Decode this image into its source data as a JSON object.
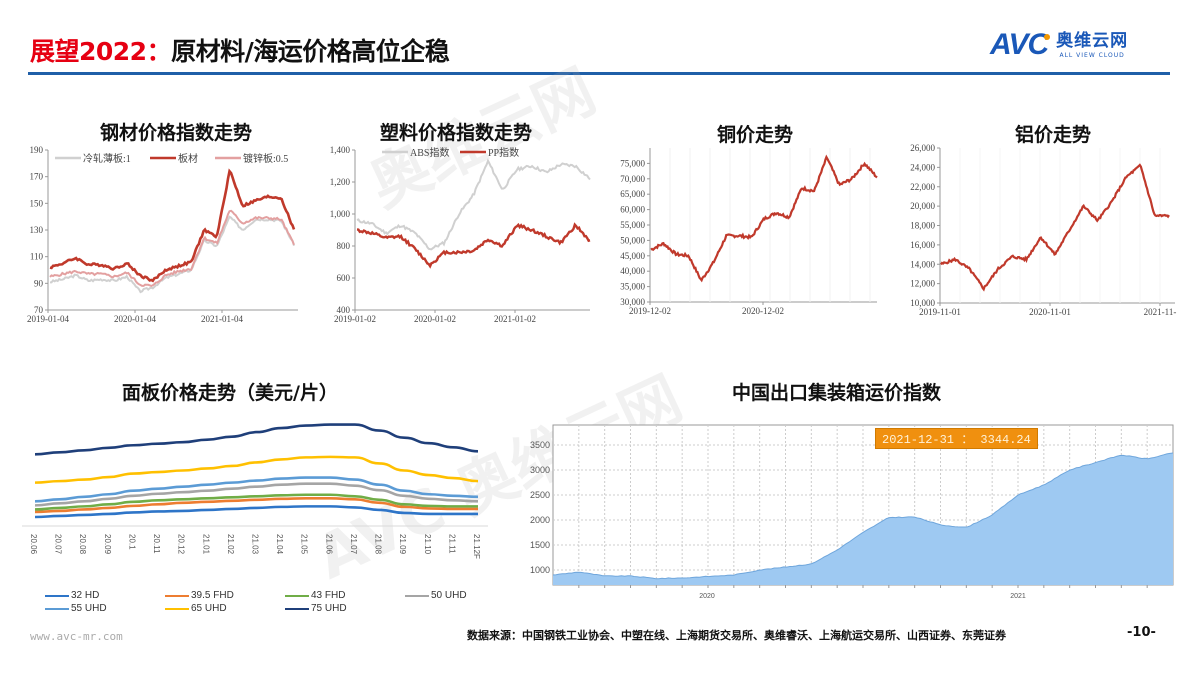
{
  "header": {
    "title_highlight": "展望2022：",
    "title_main": "原材料/海运价格高位企稳"
  },
  "logo": {
    "brand": "AVC",
    "cn_name": "奥维云网",
    "en_name": "ALL VIEW CLOUD"
  },
  "colors": {
    "accent_red": "#e60012",
    "rule_blue": "#1f5fa8",
    "line_red": "#c0392b",
    "line_grey": "#d0d0d0",
    "line_pink": "#e3a0a0",
    "area_blue": "#9ec9f2",
    "badge_orange": "#f0900f"
  },
  "footer": {
    "url": "www.avc-mr.com",
    "source": "数据来源：中国钢铁工业协会、中塑在线、上海期货交易所、奥维睿沃、上海航运交易所、山西证券、东莞证券",
    "page": "-10-"
  },
  "chart_data": [
    {
      "id": "steel",
      "type": "line",
      "title": "钢材价格指数走势",
      "xlabel": "",
      "ylabel": "",
      "ylim": [
        70,
        190
      ],
      "yticks": [
        "70",
        "90",
        "110",
        "130",
        "150",
        "170",
        "190"
      ],
      "xticks": [
        "2019-01-04",
        "2020-01-04",
        "2021-01-04"
      ],
      "legend": [
        "冷轧薄板:1",
        "板材",
        "镀锌板:0.5"
      ],
      "x": [
        "2019-01",
        "2019-03",
        "2019-05",
        "2019-07",
        "2019-09",
        "2019-11",
        "2020-01",
        "2020-03",
        "2020-05",
        "2020-07",
        "2020-09",
        "2020-11",
        "2021-01",
        "2021-03",
        "2021-05",
        "2021-06",
        "2021-07",
        "2021-09",
        "2021-11",
        "2021-12"
      ],
      "series": [
        {
          "name": "冷轧薄板:1",
          "values": [
            91,
            93,
            96,
            92,
            93,
            92,
            95,
            84,
            87,
            94,
            97,
            100,
            122,
            118,
            140,
            130,
            138,
            138,
            137,
            119
          ]
        },
        {
          "name": "板材",
          "values": [
            102,
            105,
            109,
            104,
            104,
            101,
            105,
            96,
            92,
            100,
            103,
            106,
            130,
            125,
            175,
            148,
            152,
            155,
            154,
            130
          ]
        },
        {
          "name": "镀锌板:0.5",
          "values": [
            95,
            97,
            99,
            97,
            97,
            95,
            98,
            89,
            88,
            96,
            99,
            101,
            124,
            120,
            145,
            135,
            139,
            139,
            138,
            119
          ]
        }
      ]
    },
    {
      "id": "plastic",
      "type": "line",
      "title": "塑料价格指数走势",
      "ylim": [
        400,
        1400
      ],
      "yticks": [
        "400",
        "600",
        "800",
        "1,000",
        "1,200",
        "1,400"
      ],
      "xticks": [
        "2019-01-02",
        "2020-01-02",
        "2021-01-02"
      ],
      "legend": [
        "ABS指数",
        "PP指数"
      ],
      "x": [
        "2019-01",
        "2019-04",
        "2019-07",
        "2019-10",
        "2020-01",
        "2020-03",
        "2020-04",
        "2020-07",
        "2020-10",
        "2020-11",
        "2021-01",
        "2021-03",
        "2021-05",
        "2021-07",
        "2021-09",
        "2021-10",
        "2021-12"
      ],
      "series": [
        {
          "name": "ABS指数",
          "values": [
            960,
            940,
            880,
            930,
            880,
            780,
            820,
            1000,
            1120,
            1330,
            1150,
            1280,
            1300,
            1260,
            1310,
            1300,
            1220
          ]
        },
        {
          "name": "PP指数",
          "values": [
            900,
            880,
            850,
            860,
            780,
            680,
            760,
            760,
            770,
            840,
            800,
            930,
            900,
            860,
            820,
            930,
            830
          ]
        }
      ]
    },
    {
      "id": "copper",
      "type": "line",
      "title": "铜价走势",
      "ylim": [
        30000,
        80000
      ],
      "yticks": [
        "30,000",
        "35,000",
        "40,000",
        "45,000",
        "50,000",
        "55,000",
        "60,000",
        "65,000",
        "70,000",
        "75,000"
      ],
      "xticks": [
        "2019-12-02",
        "2020-12-02"
      ],
      "x": [
        "2019-12",
        "2020-01",
        "2020-02",
        "2020-03",
        "2020-04",
        "2020-06",
        "2020-07",
        "2020-09",
        "2020-11",
        "2020-12",
        "2021-01",
        "2021-02",
        "2021-03",
        "2021-05",
        "2021-06",
        "2021-08",
        "2021-10",
        "2021-11",
        "2021-12"
      ],
      "series": [
        {
          "name": "铜价",
          "values": [
            47000,
            49000,
            45500,
            45000,
            37000,
            43000,
            51500,
            51500,
            51000,
            57000,
            59000,
            57500,
            67000,
            66000,
            77000,
            68000,
            70000,
            75000,
            70500
          ]
        }
      ]
    },
    {
      "id": "aluminum",
      "type": "line",
      "title": "铝价走势",
      "ylim": [
        10000,
        26000
      ],
      "yticks": [
        "10,000",
        "12,000",
        "14,000",
        "16,000",
        "18,000",
        "20,000",
        "22,000",
        "24,000",
        "26,000"
      ],
      "xticks": [
        "2019-11-01",
        "2020-11-01",
        "2021-11-"
      ],
      "x": [
        "2019-11",
        "2020-01",
        "2020-03",
        "2020-04",
        "2020-06",
        "2020-08",
        "2020-10",
        "2020-12",
        "2021-01",
        "2021-03",
        "2021-05",
        "2021-06",
        "2021-08",
        "2021-09",
        "2021-10",
        "2021-11",
        "2021-12"
      ],
      "series": [
        {
          "name": "铝价",
          "values": [
            14000,
            14500,
            13500,
            11500,
            13500,
            14800,
            14500,
            16800,
            15000,
            17500,
            20000,
            18500,
            20500,
            23000,
            24200,
            19000,
            19000
          ]
        }
      ]
    },
    {
      "id": "panel",
      "type": "line",
      "title": "面板价格走势（美元/片）",
      "categories": [
        "20.06",
        "20.07",
        "20.08",
        "20.09",
        "20.1",
        "20.11",
        "20.12",
        "21.01",
        "21.02",
        "21.03",
        "21.04",
        "21.05",
        "21.06",
        "21.07",
        "21.08",
        "21.09",
        "21.10",
        "21.11",
        "21.12F"
      ],
      "series": [
        {
          "name": "32 HD",
          "color": "#2e75c8",
          "values": [
            32,
            34,
            36,
            38,
            41,
            43,
            44,
            46,
            48,
            50,
            52,
            53,
            53,
            51,
            46,
            40,
            38,
            38,
            38
          ]
        },
        {
          "name": "39.5 FHD",
          "color": "#ed7d31",
          "values": [
            42,
            44,
            47,
            50,
            54,
            57,
            60,
            62,
            64,
            66,
            68,
            69,
            69,
            67,
            60,
            52,
            49,
            48,
            48
          ]
        },
        {
          "name": "43 FHD",
          "color": "#70ad47",
          "values": [
            47,
            50,
            53,
            57,
            62,
            65,
            67,
            69,
            71,
            73,
            75,
            76,
            76,
            73,
            66,
            57,
            54,
            53,
            53
          ]
        },
        {
          "name": "50 UHD",
          "color": "#a5a5a5",
          "values": [
            55,
            59,
            63,
            68,
            74,
            78,
            81,
            84,
            88,
            92,
            96,
            98,
            98,
            94,
            85,
            74,
            68,
            65,
            63
          ]
        },
        {
          "name": "55 UHD",
          "color": "#5b9bd5",
          "values": [
            63,
            67,
            72,
            77,
            84,
            88,
            92,
            96,
            100,
            104,
            108,
            110,
            110,
            106,
            96,
            84,
            77,
            74,
            72
          ]
        },
        {
          "name": "65 UHD",
          "color": "#ffc000",
          "values": [
            100,
            103,
            106,
            111,
            118,
            121,
            124,
            128,
            133,
            140,
            146,
            150,
            151,
            150,
            138,
            124,
            115,
            109,
            103
          ]
        },
        {
          "name": "75 UHD",
          "color": "#1f3f7a",
          "values": [
            156,
            160,
            164,
            169,
            174,
            177,
            180,
            185,
            191,
            200,
            208,
            213,
            215,
            215,
            203,
            189,
            178,
            170,
            162
          ]
        }
      ]
    },
    {
      "id": "scfi",
      "type": "area",
      "title": "中国出口集装箱运价指数",
      "ylim": [
        700,
        3900
      ],
      "yticks": [
        "1000",
        "1500",
        "2000",
        "2500",
        "3000",
        "3500"
      ],
      "xticks": [
        "2020",
        "2021"
      ],
      "annotation": "2021-12-31 ： 3344.24",
      "x": [
        "2019-07",
        "2019-08",
        "2019-10",
        "2019-12",
        "2020-02",
        "2020-04",
        "2020-06",
        "2020-07",
        "2020-08",
        "2020-09",
        "2020-10",
        "2020-11",
        "2020-12",
        "2021-01",
        "2021-02",
        "2021-03",
        "2021-04",
        "2021-05",
        "2021-06",
        "2021-07",
        "2021-08",
        "2021-09",
        "2021-10",
        "2021-11",
        "2021-12"
      ],
      "values": [
        900,
        960,
        880,
        880,
        830,
        840,
        870,
        900,
        1000,
        1060,
        1120,
        1400,
        1750,
        2050,
        2060,
        1900,
        1850,
        2100,
        2500,
        2700,
        3000,
        3150,
        3300,
        3220,
        3344
      ]
    }
  ]
}
